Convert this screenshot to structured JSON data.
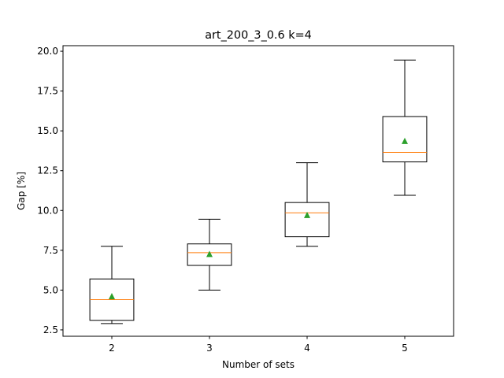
{
  "chart_data": {
    "type": "boxplot",
    "title": "art_200_3_0.6   k=4",
    "xlabel": "Number of sets",
    "ylabel": "Gap [%]",
    "categories": [
      "2",
      "3",
      "4",
      "5"
    ],
    "ylim": [
      2.1,
      20.35
    ],
    "yticks": [
      2.5,
      5.0,
      7.5,
      10.0,
      12.5,
      15.0,
      17.5,
      20.0
    ],
    "ytick_labels": [
      "2.5",
      "5.0",
      "7.5",
      "10.0",
      "12.5",
      "15.0",
      "17.5",
      "20.0"
    ],
    "boxes": [
      {
        "category": "2",
        "whisker_low": 2.9,
        "q1": 3.1,
        "median": 4.4,
        "q3": 5.7,
        "whisker_high": 7.75,
        "mean": 4.6
      },
      {
        "category": "3",
        "whisker_low": 5.0,
        "q1": 6.55,
        "median": 7.35,
        "q3": 7.9,
        "whisker_high": 9.45,
        "mean": 7.25
      },
      {
        "category": "4",
        "whisker_low": 7.75,
        "q1": 8.35,
        "median": 9.85,
        "q3": 10.5,
        "whisker_high": 13.0,
        "mean": 9.7
      },
      {
        "category": "5",
        "whisker_low": 10.95,
        "q1": 13.05,
        "median": 13.65,
        "q3": 15.9,
        "whisker_high": 19.45,
        "mean": 14.35
      }
    ],
    "colors": {
      "box": "#000000",
      "median": "#ff7f0e",
      "mean": "#2ca02c"
    }
  }
}
